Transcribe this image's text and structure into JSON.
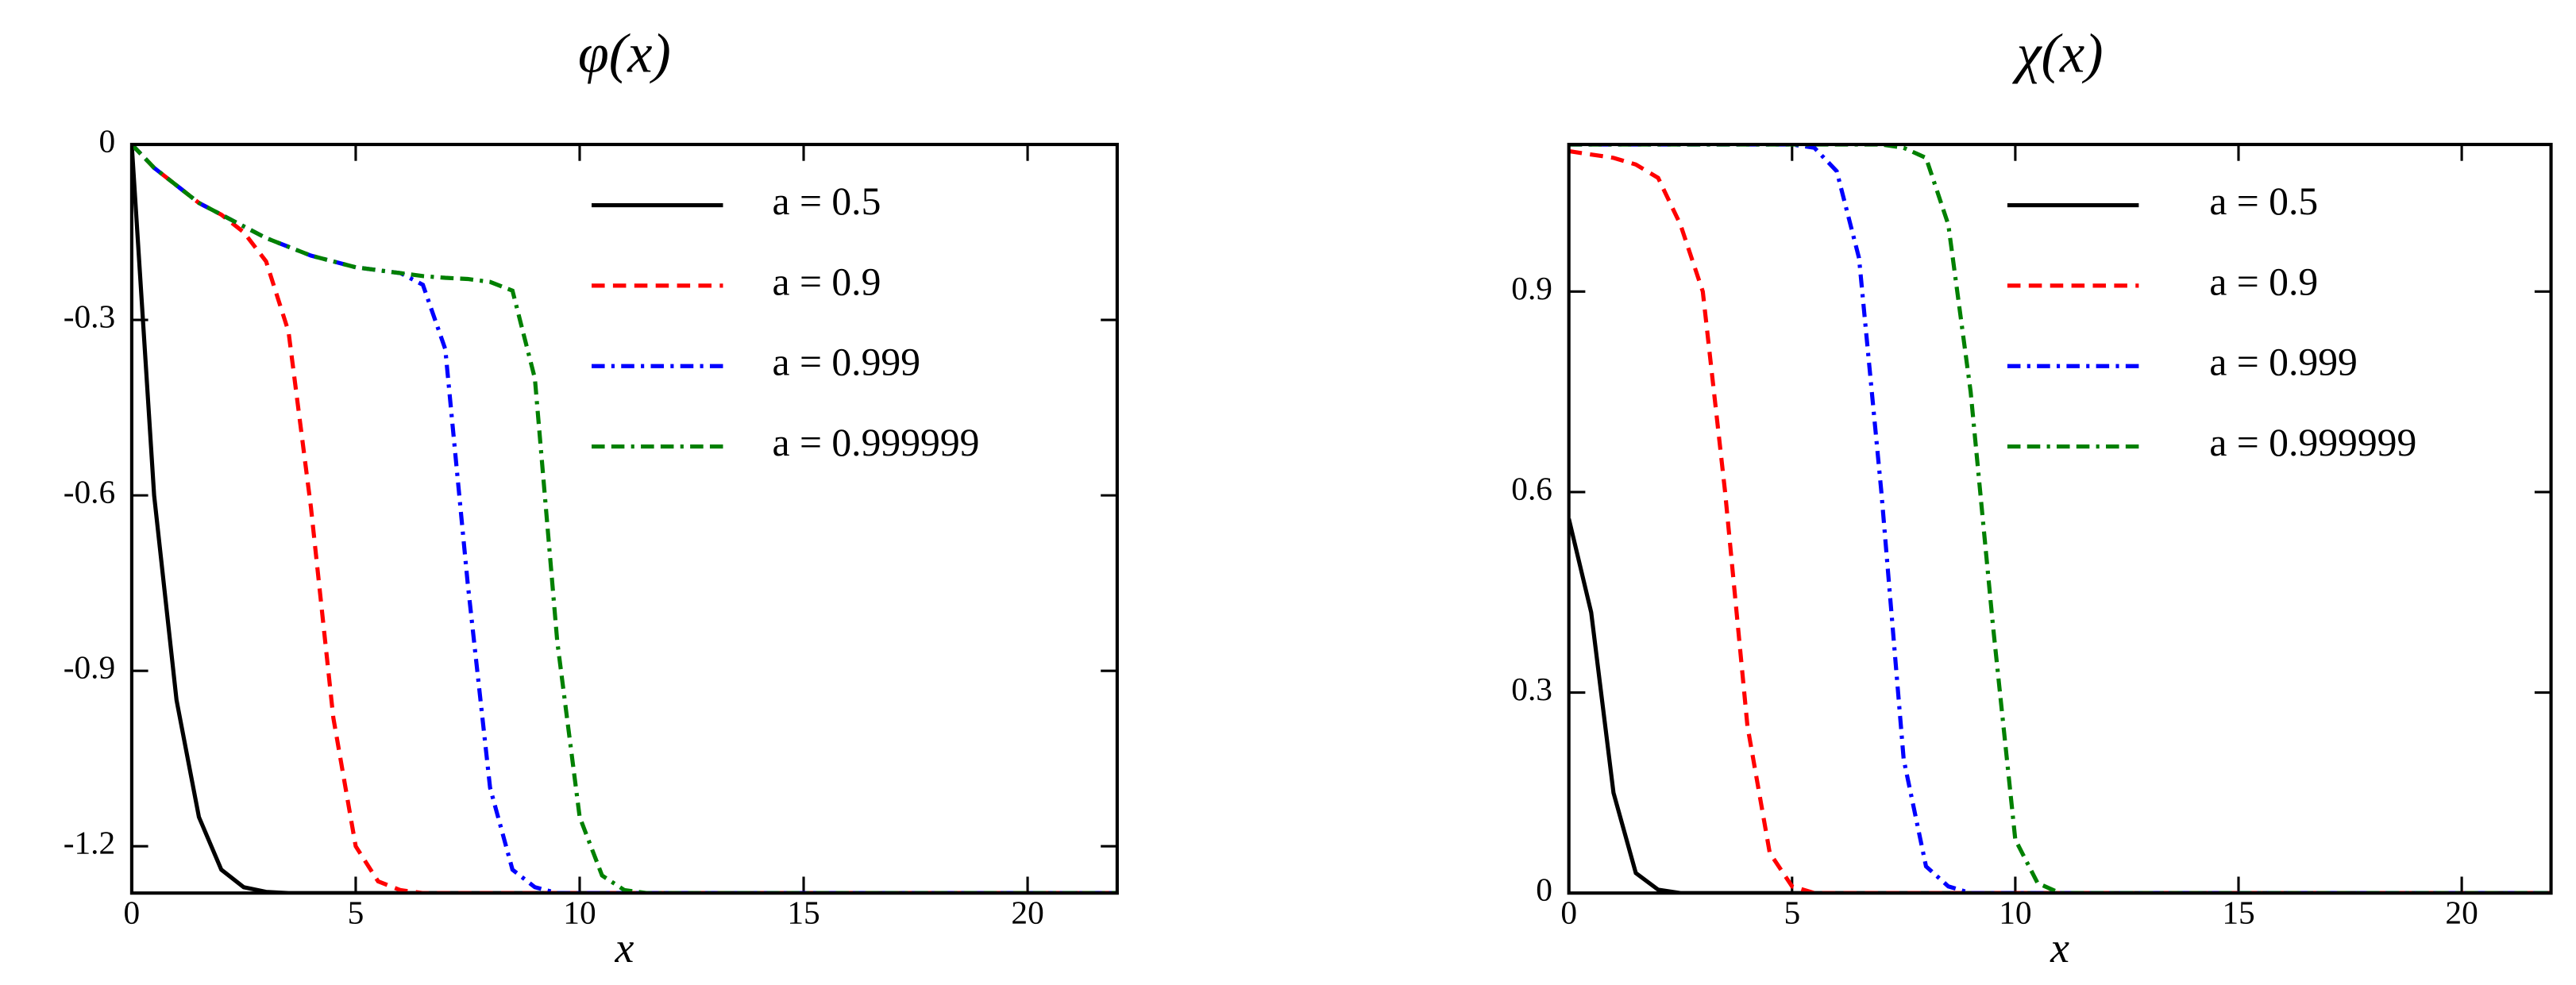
{
  "chart_data": [
    {
      "type": "line",
      "title": "φ(x)",
      "x_label": "x",
      "legend": "upper right",
      "xlim": [
        0,
        22
      ],
      "ylim": [
        -1.28,
        0
      ],
      "xticks": [
        0,
        5,
        10,
        15,
        20
      ],
      "yticks": [
        0,
        -0.3,
        -0.6,
        -0.9,
        -1.2
      ],
      "x": [
        0,
        0.5,
        1,
        1.5,
        2,
        2.5,
        3,
        3.5,
        4,
        4.5,
        5,
        5.5,
        6,
        6.5,
        7,
        7.5,
        8,
        8.5,
        9,
        9.5,
        10,
        10.5,
        11,
        11.5,
        12,
        14,
        16,
        18,
        20,
        22
      ],
      "series": [
        {
          "name": "a = 0.5",
          "color": "#000000",
          "linestyle": "solid",
          "values": [
            0,
            -0.6,
            -0.95,
            -1.15,
            -1.24,
            -1.27,
            -1.278,
            -1.28,
            -1.28,
            -1.28,
            -1.28,
            -1.28,
            -1.28,
            -1.28,
            -1.28,
            -1.28,
            -1.28,
            -1.28,
            -1.28,
            -1.28,
            -1.28,
            -1.28,
            -1.28,
            -1.28,
            -1.28,
            -1.28,
            -1.28,
            -1.28,
            -1.28,
            -1.28
          ]
        },
        {
          "name": "a = 0.9",
          "color": "#ff0000",
          "linestyle": "dashed",
          "values": [
            0,
            -0.04,
            -0.07,
            -0.1,
            -0.12,
            -0.15,
            -0.2,
            -0.32,
            -0.62,
            -0.98,
            -1.2,
            -1.26,
            -1.275,
            -1.28,
            -1.28,
            -1.28,
            -1.28,
            -1.28,
            -1.28,
            -1.28,
            -1.28,
            -1.28,
            -1.28,
            -1.28,
            -1.28,
            -1.28,
            -1.28,
            -1.28,
            -1.28,
            -1.28
          ]
        },
        {
          "name": "a = 0.999",
          "color": "#0000ff",
          "linestyle": "dashdot",
          "values": [
            0,
            -0.04,
            -0.07,
            -0.1,
            -0.12,
            -0.14,
            -0.16,
            -0.175,
            -0.19,
            -0.2,
            -0.21,
            -0.215,
            -0.22,
            -0.24,
            -0.35,
            -0.75,
            -1.1,
            -1.24,
            -1.27,
            -1.28,
            -1.28,
            -1.28,
            -1.28,
            -1.28,
            -1.28,
            -1.28,
            -1.28,
            -1.28,
            -1.28,
            -1.28
          ]
        },
        {
          "name": "a = 0.999999",
          "color": "#008000",
          "linestyle": "dashdashdot",
          "values": [
            0,
            -0.04,
            -0.07,
            -0.1,
            -0.12,
            -0.14,
            -0.16,
            -0.175,
            -0.19,
            -0.2,
            -0.21,
            -0.215,
            -0.22,
            -0.225,
            -0.228,
            -0.23,
            -0.235,
            -0.25,
            -0.4,
            -0.85,
            -1.15,
            -1.25,
            -1.275,
            -1.28,
            -1.28,
            -1.28,
            -1.28,
            -1.28,
            -1.28,
            -1.28
          ]
        }
      ]
    },
    {
      "type": "line",
      "title": "χ(x)",
      "x_label": "x",
      "legend": "upper right",
      "xlim": [
        0,
        22
      ],
      "ylim": [
        0,
        1.12
      ],
      "xticks": [
        0,
        5,
        10,
        15,
        20
      ],
      "yticks": [
        0,
        0.3,
        0.6,
        0.9
      ],
      "x": [
        0,
        0.5,
        1,
        1.5,
        2,
        2.5,
        3,
        3.5,
        4,
        4.5,
        5,
        5.5,
        6,
        6.5,
        7,
        7.5,
        8,
        8.5,
        9,
        9.5,
        10,
        10.5,
        11,
        11.5,
        12,
        14,
        16,
        18,
        20,
        22
      ],
      "series": [
        {
          "name": "a = 0.5",
          "color": "#000000",
          "linestyle": "solid",
          "values": [
            0.56,
            0.42,
            0.15,
            0.03,
            0.005,
            0,
            0,
            0,
            0,
            0,
            0,
            0,
            0,
            0,
            0,
            0,
            0,
            0,
            0,
            0,
            0,
            0,
            0,
            0,
            0,
            0,
            0,
            0,
            0,
            0
          ]
        },
        {
          "name": "a = 0.9",
          "color": "#ff0000",
          "linestyle": "dashed",
          "values": [
            1.11,
            1.105,
            1.1,
            1.09,
            1.07,
            1.0,
            0.9,
            0.6,
            0.25,
            0.06,
            0.01,
            0,
            0,
            0,
            0,
            0,
            0,
            0,
            0,
            0,
            0,
            0,
            0,
            0,
            0,
            0,
            0,
            0,
            0,
            0
          ]
        },
        {
          "name": "a = 0.999",
          "color": "#0000ff",
          "linestyle": "dashdot",
          "values": [
            1.12,
            1.12,
            1.12,
            1.12,
            1.12,
            1.12,
            1.12,
            1.12,
            1.12,
            1.12,
            1.12,
            1.115,
            1.08,
            0.95,
            0.6,
            0.2,
            0.04,
            0.01,
            0,
            0,
            0,
            0,
            0,
            0,
            0,
            0,
            0,
            0,
            0,
            0
          ]
        },
        {
          "name": "a = 0.999999",
          "color": "#008000",
          "linestyle": "dashdashdot",
          "values": [
            1.12,
            1.12,
            1.12,
            1.12,
            1.12,
            1.12,
            1.12,
            1.12,
            1.12,
            1.12,
            1.12,
            1.12,
            1.12,
            1.12,
            1.12,
            1.115,
            1.1,
            1.0,
            0.75,
            0.4,
            0.08,
            0.015,
            0,
            0,
            0,
            0,
            0,
            0,
            0,
            0
          ]
        }
      ]
    }
  ]
}
